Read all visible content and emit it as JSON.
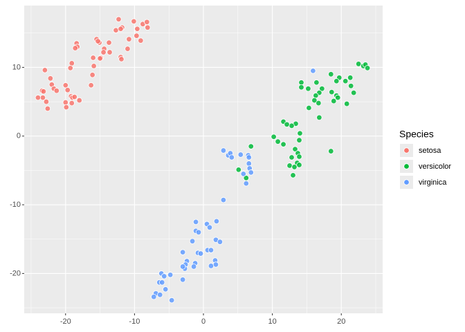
{
  "chart_data": {
    "type": "scatter",
    "legend_title": "Species",
    "legend_position": "right",
    "grid": true,
    "xlim": [
      -26,
      26
    ],
    "ylim": [
      -25.8,
      19.0
    ],
    "xticks": [
      -20,
      -10,
      0,
      10,
      20
    ],
    "yticks": [
      -20,
      -10,
      0,
      10
    ],
    "series": [
      {
        "name": "setosa",
        "color": "#F8766D",
        "x": [
          -12.3,
          -11.8,
          -12.7,
          -12.0,
          -10.1,
          -9.6,
          -8.8,
          -8.2,
          -8.1,
          -9.1,
          -9.7,
          -10.8,
          -11.0,
          -12.0,
          -11.9,
          -13.6,
          -14.4,
          -14.5,
          -14.9,
          -15.0,
          -15.5,
          -15.1,
          -16.0,
          -15.9,
          -16.1,
          -16.3,
          -18.4,
          -18.3,
          -18.6,
          -19.1,
          -19.3,
          -20.0,
          -19.7,
          -19.2,
          -19.0,
          -18.7,
          -20.0,
          -19.1,
          -18.0,
          -19.9,
          -23.0,
          -22.2,
          -23.4,
          -22.0,
          -21.7,
          -21.3,
          -23.2,
          -23.3,
          -24.0,
          -22.8,
          -22.6,
          -13.7,
          -15.3
        ],
        "y": [
          17.0,
          15.8,
          15.4,
          15.6,
          16.7,
          15.6,
          16.3,
          16.6,
          15.8,
          13.9,
          14.6,
          14.1,
          12.7,
          11.5,
          11.2,
          12.2,
          12.7,
          12.2,
          11.4,
          11.3,
          14.1,
          13.6,
          11.4,
          10.2,
          8.9,
          7.4,
          13.5,
          13.0,
          12.8,
          10.6,
          9.9,
          7.4,
          6.7,
          5.8,
          5.6,
          5.7,
          4.9,
          4.8,
          5.2,
          4.2,
          9.6,
          8.4,
          6.6,
          7.5,
          6.9,
          6.6,
          6.5,
          5.6,
          5.6,
          5.0,
          4.0,
          13.6,
          13.8
        ]
      },
      {
        "name": "versicolor",
        "color": "#00BA38",
        "x": [
          22.5,
          23.2,
          23.5,
          23.8,
          21.3,
          20.6,
          21.4,
          21.8,
          20.8,
          19.7,
          19.3,
          18.5,
          19.3,
          19.5,
          18.9,
          18.6,
          18.5,
          16.4,
          17.2,
          16.8,
          16.3,
          16.1,
          16.7,
          15.2,
          15.3,
          14.2,
          14.2,
          16.8,
          14.0,
          13.9,
          13.4,
          12.8,
          11.6,
          12.1,
          10.2,
          10.8,
          11.6,
          13.3,
          13.7,
          12.8,
          13.9,
          13.6,
          12.5,
          13.2,
          13.9,
          13.0,
          6.9,
          5.1,
          6.2
        ],
        "y": [
          10.5,
          10.2,
          10.4,
          9.9,
          8.5,
          8.0,
          7.3,
          6.3,
          4.7,
          8.5,
          8.0,
          9.0,
          5.9,
          5.6,
          5.1,
          6.4,
          -2.2,
          7.8,
          6.9,
          6.3,
          5.9,
          5.2,
          4.8,
          6.9,
          4.1,
          7.8,
          7.1,
          2.7,
          0.4,
          -0.6,
          1.8,
          1.5,
          2.1,
          1.7,
          -0.1,
          -0.8,
          -1.2,
          -1.9,
          -2.5,
          -3.1,
          -3.0,
          -3.9,
          -4.3,
          -4.5,
          -4.2,
          -5.7,
          -1.5,
          -4.9,
          -6.1
        ]
      },
      {
        "name": "virginica",
        "color": "#619CFF",
        "x": [
          15.9,
          2.9,
          3.6,
          3.9,
          4.1,
          5.4,
          6.5,
          6.6,
          6.6,
          6.7,
          6.9,
          5.8,
          6.2,
          2.9,
          -1.1,
          -1.1,
          -0.7,
          0.5,
          0.9,
          1.9,
          1.8,
          2.4,
          -1.6,
          -3.0,
          -0.8,
          -0.4,
          0.6,
          1.1,
          -1.2,
          -1.4,
          -2.4,
          -2.6,
          -2.7,
          -3.0,
          1.7,
          1.8,
          1.1,
          -3.0,
          -4.8,
          -6.1,
          -5.7,
          -6.4,
          -6.0,
          -5.5,
          -6.9,
          -6.3,
          -7.2,
          -4.6
        ],
        "y": [
          9.5,
          -2.1,
          -2.8,
          -2.5,
          -3.1,
          -2.7,
          -2.8,
          -3.1,
          -4.0,
          -4.7,
          -5.3,
          -5.5,
          -6.9,
          -9.3,
          -12.5,
          -13.8,
          -14.0,
          -12.8,
          -13.3,
          -12.4,
          -15.1,
          -15.4,
          -15.3,
          -16.9,
          -17.0,
          -17.1,
          -16.6,
          -16.6,
          -18.5,
          -19.0,
          -18.2,
          -18.7,
          -19.3,
          -19.0,
          -18.1,
          -18.7,
          -18.9,
          -20.9,
          -20.2,
          -20.0,
          -20.4,
          -21.3,
          -21.3,
          -22.3,
          -22.9,
          -23.1,
          -23.4,
          -23.9
        ]
      }
    ]
  }
}
